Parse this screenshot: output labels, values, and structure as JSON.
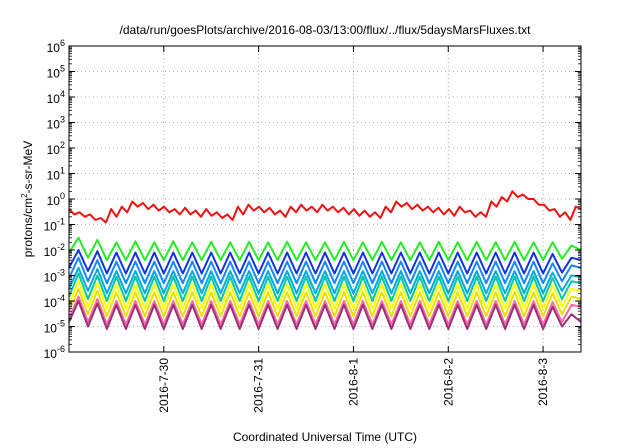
{
  "chart_data": {
    "type": "line",
    "title": "/data/run/goesPlots/archive/2016-08-03/13:00/flux/../flux/5daysMarsFluxes.txt",
    "xlabel": "Coordinated Universal Time (UTC)",
    "ylabel": {
      "prefix": "protons/cm",
      "superscript": "2",
      "suffix": "-s-sr-MeV"
    },
    "yscale": "log",
    "ylim_exponents": [
      -6,
      6
    ],
    "y_ticks": [
      {
        "base": "10",
        "exp": "6"
      },
      {
        "base": "10",
        "exp": "5"
      },
      {
        "base": "10",
        "exp": "4"
      },
      {
        "base": "10",
        "exp": "3"
      },
      {
        "base": "10",
        "exp": "2"
      },
      {
        "base": "10",
        "exp": "1"
      },
      {
        "base": "10",
        "exp": "0"
      },
      {
        "base": "10",
        "exp": "-1"
      },
      {
        "base": "10",
        "exp": "-2"
      },
      {
        "base": "10",
        "exp": "-3"
      },
      {
        "base": "10",
        "exp": "-4"
      },
      {
        "base": "10",
        "exp": "-5"
      },
      {
        "base": "10",
        "exp": "-6"
      }
    ],
    "xlim_days": [
      29.0,
      34.4
    ],
    "x_ticks": [
      {
        "label": "2016-7-30",
        "day": 30
      },
      {
        "label": "2016-7-31",
        "day": 31
      },
      {
        "label": "2016-8-1",
        "day": 32
      },
      {
        "label": "2016-8-2",
        "day": 33
      },
      {
        "label": "2016-8-3",
        "day": 34
      }
    ],
    "grid": true,
    "sawtooth_points_per_tooth": 3,
    "series": [
      {
        "color": "#ee1111",
        "values": [
          0.4,
          0.25,
          0.3,
          0.2,
          0.25,
          0.15,
          0.18,
          0.12,
          0.4,
          0.2,
          0.5,
          0.3,
          0.8,
          0.5,
          0.7,
          0.4,
          0.6,
          0.35,
          0.5,
          0.3,
          0.4,
          0.25,
          0.45,
          0.25,
          0.35,
          0.2,
          0.4,
          0.22,
          0.3,
          0.18,
          0.25,
          0.15,
          0.5,
          0.25,
          0.6,
          0.35,
          0.5,
          0.3,
          0.45,
          0.25,
          0.35,
          0.2,
          0.5,
          0.3,
          0.6,
          0.35,
          0.5,
          0.3,
          0.6,
          0.35,
          0.5,
          0.3,
          0.45,
          0.25,
          0.4,
          0.22,
          0.35,
          0.2,
          0.3,
          0.18,
          0.5,
          0.3,
          0.8,
          0.5,
          0.7,
          0.4,
          0.6,
          0.35,
          0.5,
          0.3,
          0.45,
          0.25,
          0.4,
          0.22,
          0.5,
          0.3,
          0.35,
          0.2,
          0.3,
          0.2,
          0.8,
          0.5,
          1.2,
          0.8,
          2.0,
          1.2,
          1.5,
          1.0,
          1.0,
          0.6,
          0.6,
          0.35,
          0.4,
          0.2,
          0.3,
          0.15,
          0.5,
          0.4
        ]
      },
      {
        "color": "#22ee22",
        "values": [
          0.008,
          0.03,
          0.005,
          0.025,
          0.004,
          0.02,
          0.004,
          0.022,
          0.004,
          0.02,
          0.004,
          0.022,
          0.004,
          0.02,
          0.004,
          0.021,
          0.004,
          0.02,
          0.004,
          0.021,
          0.004,
          0.02,
          0.004,
          0.021,
          0.004,
          0.02,
          0.004,
          0.02,
          0.004,
          0.021,
          0.004,
          0.02,
          0.004,
          0.021,
          0.004,
          0.02,
          0.004,
          0.02,
          0.004,
          0.021,
          0.004,
          0.02,
          0.004,
          0.021,
          0.004,
          0.02,
          0.004,
          0.021,
          0.004,
          0.02,
          0.004,
          0.02,
          0.0045,
          0.015,
          0.01
        ]
      },
      {
        "color": "#1133dd",
        "values": [
          0.002,
          0.01,
          0.0015,
          0.009,
          0.0012,
          0.008,
          0.0012,
          0.008,
          0.0012,
          0.008,
          0.0012,
          0.008,
          0.0012,
          0.008,
          0.0012,
          0.008,
          0.0012,
          0.008,
          0.0012,
          0.008,
          0.0012,
          0.008,
          0.0012,
          0.008,
          0.0012,
          0.008,
          0.0012,
          0.008,
          0.0012,
          0.008,
          0.0012,
          0.008,
          0.0012,
          0.008,
          0.0012,
          0.008,
          0.0012,
          0.008,
          0.0012,
          0.008,
          0.0012,
          0.008,
          0.0012,
          0.008,
          0.0012,
          0.008,
          0.0012,
          0.008,
          0.0012,
          0.008,
          0.0012,
          0.007,
          0.0013,
          0.005,
          0.004
        ]
      },
      {
        "color": "#1188ff",
        "values": [
          0.0008,
          0.005,
          0.0006,
          0.004,
          0.0005,
          0.0035,
          0.0005,
          0.0035,
          0.0005,
          0.0035,
          0.0005,
          0.0035,
          0.0005,
          0.0035,
          0.0005,
          0.0035,
          0.0005,
          0.0035,
          0.0005,
          0.0035,
          0.0005,
          0.0035,
          0.0005,
          0.0035,
          0.0005,
          0.0035,
          0.0005,
          0.0035,
          0.0005,
          0.0035,
          0.0005,
          0.0035,
          0.0005,
          0.0035,
          0.0005,
          0.0035,
          0.0005,
          0.0035,
          0.0005,
          0.0035,
          0.0005,
          0.0035,
          0.0005,
          0.0035,
          0.0005,
          0.0035,
          0.0005,
          0.0035,
          0.0005,
          0.0035,
          0.0005,
          0.003,
          0.0006,
          0.0025,
          0.002
        ]
      },
      {
        "color": "#00aadd",
        "values": [
          0.0003,
          0.002,
          0.00025,
          0.0018,
          0.0002,
          0.0015,
          0.0002,
          0.0015,
          0.0002,
          0.0015,
          0.0002,
          0.0015,
          0.0002,
          0.0015,
          0.0002,
          0.0015,
          0.0002,
          0.0015,
          0.0002,
          0.0015,
          0.0002,
          0.0015,
          0.0002,
          0.0015,
          0.0002,
          0.0015,
          0.0002,
          0.0015,
          0.0002,
          0.0015,
          0.0002,
          0.0015,
          0.0002,
          0.0015,
          0.0002,
          0.0015,
          0.0002,
          0.0015,
          0.0002,
          0.0015,
          0.0002,
          0.0015,
          0.0002,
          0.0015,
          0.0002,
          0.0015,
          0.0002,
          0.0015,
          0.0002,
          0.0015,
          0.0002,
          0.0013,
          0.00025,
          0.001,
          0.0009
        ]
      },
      {
        "color": "#00c8a0",
        "values": [
          0.00015,
          0.0012,
          0.00012,
          0.001,
          0.0001,
          0.0009,
          0.0001,
          0.0009,
          0.0001,
          0.0009,
          0.0001,
          0.0009,
          0.0001,
          0.0009,
          0.0001,
          0.0009,
          0.0001,
          0.0009,
          0.0001,
          0.0009,
          0.0001,
          0.0009,
          0.0001,
          0.0009,
          0.0001,
          0.0009,
          0.0001,
          0.0009,
          0.0001,
          0.0009,
          0.0001,
          0.0009,
          0.0001,
          0.0009,
          0.0001,
          0.0009,
          0.0001,
          0.0009,
          0.0001,
          0.0009,
          0.0001,
          0.0009,
          0.0001,
          0.0009,
          0.0001,
          0.0009,
          0.0001,
          0.0009,
          0.0001,
          0.0009,
          0.0001,
          0.0008,
          0.00012,
          0.0006,
          0.0005
        ]
      },
      {
        "color": "#ffff00",
        "values": [
          8e-05,
          0.0006,
          6e-05,
          0.0005,
          5e-05,
          0.00045,
          5e-05,
          0.00045,
          5e-05,
          0.00045,
          5e-05,
          0.00045,
          5e-05,
          0.00045,
          5e-05,
          0.00045,
          5e-05,
          0.00045,
          5e-05,
          0.00045,
          5e-05,
          0.00045,
          5e-05,
          0.00045,
          5e-05,
          0.00045,
          5e-05,
          0.00045,
          5e-05,
          0.00045,
          5e-05,
          0.00045,
          5e-05,
          0.00045,
          5e-05,
          0.00045,
          5e-05,
          0.00045,
          5e-05,
          0.00045,
          5e-05,
          0.00045,
          5e-05,
          0.00045,
          5e-05,
          0.00045,
          5e-05,
          0.00045,
          5e-05,
          0.00045,
          5e-05,
          0.0004,
          6e-05,
          0.0003,
          0.00025
        ]
      },
      {
        "color": "#e8e000",
        "values": [
          4e-05,
          0.0003,
          3e-05,
          0.00025,
          2.5e-05,
          0.00022,
          2.5e-05,
          0.00022,
          2.5e-05,
          0.00022,
          2.5e-05,
          0.00022,
          2.5e-05,
          0.00022,
          2.5e-05,
          0.00022,
          2.5e-05,
          0.00022,
          2.5e-05,
          0.00022,
          2.5e-05,
          0.00022,
          2.5e-05,
          0.00022,
          2.5e-05,
          0.00022,
          2.5e-05,
          0.00022,
          2.5e-05,
          0.00022,
          2.5e-05,
          0.00022,
          2.5e-05,
          0.00022,
          2.5e-05,
          0.00022,
          2.5e-05,
          0.00022,
          2.5e-05,
          0.00022,
          2.5e-05,
          0.00022,
          2.5e-05,
          0.00022,
          2.5e-05,
          0.00022,
          2.5e-05,
          0.00022,
          2.5e-05,
          0.00022,
          2.5e-05,
          0.0002,
          3e-05,
          0.00015,
          0.00012
        ]
      },
      {
        "color": "#ff66aa",
        "values": [
          2e-05,
          0.00015,
          1.5e-05,
          0.00012,
          1.2e-05,
          0.0001,
          1.2e-05,
          0.0001,
          1.2e-05,
          0.0001,
          1.2e-05,
          0.0001,
          1.2e-05,
          0.0001,
          1.2e-05,
          0.0001,
          1.2e-05,
          0.0001,
          1.2e-05,
          0.0001,
          1.2e-05,
          0.0001,
          1.2e-05,
          0.0001,
          1.2e-05,
          0.0001,
          1.2e-05,
          0.0001,
          1.2e-05,
          0.0001,
          1.2e-05,
          0.0001,
          1.2e-05,
          0.0001,
          1.2e-05,
          0.0001,
          1.2e-05,
          0.0001,
          1.2e-05,
          0.0001,
          1.2e-05,
          0.0001,
          1.2e-05,
          0.0001,
          1.2e-05,
          0.0001,
          1.2e-05,
          0.0001,
          1.2e-05,
          0.0001,
          1.2e-05,
          9e-05,
          1.5e-05,
          7e-05,
          6e-05
        ]
      },
      {
        "color": "#993377",
        "values": [
          1.5e-05,
          0.0001,
          1e-05,
          8e-05,
          8e-06,
          7e-05,
          8e-06,
          7e-05,
          8e-06,
          7e-05,
          8e-06,
          7e-05,
          8e-06,
          7e-05,
          8e-06,
          7e-05,
          8e-06,
          7e-05,
          8e-06,
          7e-05,
          8e-06,
          7e-05,
          8e-06,
          7e-05,
          8e-06,
          7e-05,
          8e-06,
          7e-05,
          8e-06,
          7e-05,
          8e-06,
          7e-05,
          8e-06,
          7e-05,
          8e-06,
          7e-05,
          8e-06,
          7e-05,
          8e-06,
          7e-05,
          8e-06,
          7e-05,
          8e-06,
          7e-05,
          8e-06,
          7e-05,
          8e-06,
          7e-05,
          8e-06,
          7e-05,
          8e-06,
          6e-05,
          1e-05,
          3e-05,
          1.5e-05
        ]
      }
    ]
  }
}
